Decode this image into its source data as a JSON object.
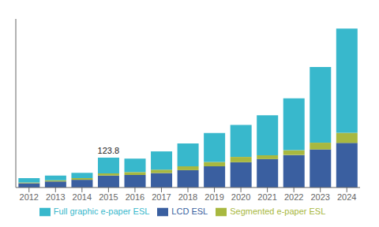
{
  "chart_data": {
    "type": "bar",
    "stacked": true,
    "categories": [
      "2012",
      "2013",
      "2014",
      "2015",
      "2016",
      "2017",
      "2018",
      "2019",
      "2020",
      "2021",
      "2022",
      "2023",
      "2024"
    ],
    "series": [
      {
        "name": "LCD ESL",
        "color": "#3a5fa0",
        "values": [
          18,
          25,
          32,
          50,
          52,
          60,
          72,
          88,
          105,
          118,
          135,
          158,
          185
        ]
      },
      {
        "name": "Segmented e-paper ESL",
        "color": "#a8b840",
        "values": [
          3,
          5,
          7,
          9,
          12,
          14,
          16,
          18,
          22,
          16,
          20,
          28,
          42
        ]
      },
      {
        "name": "Full graphic e-paper ESL",
        "color": "#38b8cc",
        "values": [
          18,
          20,
          22,
          65,
          56,
          76,
          95,
          120,
          133,
          166,
          215,
          314,
          433
        ]
      }
    ],
    "ylim": [
      0,
      700
    ],
    "tick_labels": "x",
    "grid": false,
    "legend": "bottom",
    "annotations": [
      {
        "text": "123.8",
        "x": "2015"
      }
    ]
  }
}
